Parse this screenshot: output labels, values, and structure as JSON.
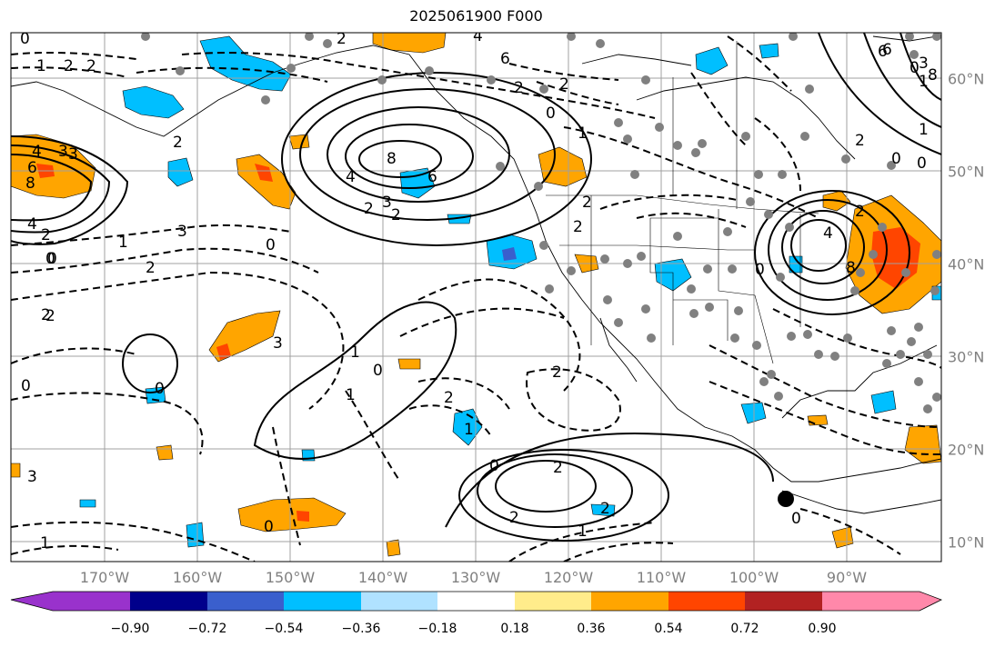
{
  "title": "2025061900 F000",
  "lon_labels": [
    "170°W",
    "160°W",
    "150°W",
    "140°W",
    "130°W",
    "120°W",
    "110°W",
    "100°W",
    "90°W"
  ],
  "lat_labels": [
    "60°N",
    "50°N",
    "40°N",
    "30°N",
    "20°N",
    "10°N"
  ],
  "colorbar": {
    "ticks": [
      "−0.90",
      "−0.72",
      "−0.54",
      "−0.36",
      "−0.18",
      "0.18",
      "0.36",
      "0.54",
      "0.72",
      "0.90"
    ],
    "colors": [
      "#9932cc",
      "#00008b",
      "#3a5fcd",
      "#00bfff",
      "#b0e2ff",
      "#ffffff",
      "#ffec8b",
      "#ffa500",
      "#ff4500",
      "#b22222",
      "#ff88aa"
    ]
  },
  "contour_labels": [
    {
      "t": "0"
    },
    {
      "t": "1"
    },
    {
      "t": "2"
    },
    {
      "t": "2"
    },
    {
      "t": "3"
    },
    {
      "t": "4"
    },
    {
      "t": "3"
    },
    {
      "t": "2"
    },
    {
      "t": "2"
    },
    {
      "t": "0"
    },
    {
      "t": "1"
    },
    {
      "t": "3"
    },
    {
      "t": "6"
    },
    {
      "t": "8"
    },
    {
      "t": "4"
    },
    {
      "t": "2"
    },
    {
      "t": "0"
    },
    {
      "t": "1"
    },
    {
      "t": "3"
    },
    {
      "t": "2"
    },
    {
      "t": "8"
    },
    {
      "t": "6"
    },
    {
      "t": "4"
    },
    {
      "t": "3"
    },
    {
      "t": "2"
    },
    {
      "t": "2"
    },
    {
      "t": "2"
    },
    {
      "t": "0"
    },
    {
      "t": "1"
    },
    {
      "t": "2"
    },
    {
      "t": "4"
    },
    {
      "t": "6"
    },
    {
      "t": "2"
    },
    {
      "t": "0"
    },
    {
      "t": "4"
    },
    {
      "t": "8"
    },
    {
      "t": "6"
    },
    {
      "t": "2"
    },
    {
      "t": "0"
    },
    {
      "t": "2"
    },
    {
      "t": "2"
    },
    {
      "t": "3"
    },
    {
      "t": "2"
    },
    {
      "t": "1"
    },
    {
      "t": "0"
    },
    {
      "t": "1"
    },
    {
      "t": "0"
    },
    {
      "t": "2"
    },
    {
      "t": "1"
    },
    {
      "t": "2"
    },
    {
      "t": "2"
    },
    {
      "t": "0"
    },
    {
      "t": "2"
    },
    {
      "t": "2"
    },
    {
      "t": "1"
    },
    {
      "t": "0"
    },
    {
      "t": "0"
    },
    {
      "t": "2"
    },
    {
      "t": "1"
    },
    {
      "t": "0"
    },
    {
      "t": "0"
    },
    {
      "t": "1"
    },
    {
      "t": "0"
    },
    {
      "t": "6"
    },
    {
      "t": "8"
    },
    {
      "t": "3"
    },
    {
      "t": "0"
    }
  ]
}
